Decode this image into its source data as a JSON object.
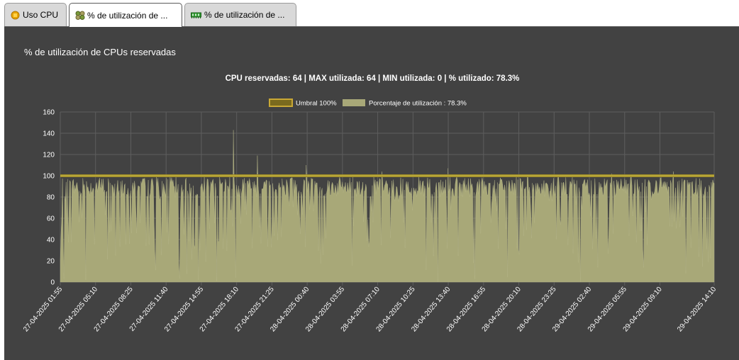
{
  "tabs": [
    {
      "label": "Uso CPU",
      "icon": "cpu-chip-icon"
    },
    {
      "label": "% de utilización de ...",
      "icon": "cpu-cluster-icon"
    },
    {
      "label": "% de utilización de ...",
      "icon": "memory-icon"
    }
  ],
  "panel": {
    "title": "% de utilización de CPUs reservadas"
  },
  "colors": {
    "panel_bg": "#424242",
    "threshold": "#9c8a2a",
    "area_fill": "#a8a878",
    "grid": "#5e5e5e"
  },
  "chart_data": {
    "type": "area",
    "subtitle": "CPU reservadas: 64 |  MAX utilizada: 64 |  MIN utilizada: 0 |  % utilizado: 78.3%",
    "legend": [
      "Umbral 100%",
      "Porcentaje de utilización : 78.3%"
    ],
    "legend_position": "top-center",
    "ylim": [
      0,
      160
    ],
    "yticks": [
      0,
      20,
      40,
      60,
      80,
      100,
      120,
      140,
      160
    ],
    "x_tick_labels": [
      "27-04-2025 01:55",
      "27-04-2025 05:10",
      "27-04-2025 08:25",
      "27-04-2025 11:40",
      "27-04-2025 14:55",
      "27-04-2025 18:10",
      "27-04-2025 21:25",
      "28-04-2025 00:40",
      "28-04-2025 03:55",
      "28-04-2025 07:10",
      "28-04-2025 10:25",
      "28-04-2025 13:40",
      "28-04-2025 16:55",
      "28-04-2025 20:10",
      "28-04-2025 23:25",
      "29-04-2025 02:40",
      "29-04-2025 05:55",
      "29-04-2025 09:10",
      "29-04-2025 14:10"
    ],
    "grid": true,
    "series": [
      {
        "name": "Umbral 100%",
        "value": 100
      },
      {
        "name": "Porcentaje de utilización : 78.3%",
        "avg": 78.3,
        "max": 143,
        "min": 0,
        "x_range": [
          "27-04-2025 01:55",
          "29-04-2025 14:10"
        ],
        "spikes": [
          {
            "x": "27-04-2025 17:53",
            "value": 143
          },
          {
            "x": "27-04-2025 20:06",
            "value": 119
          },
          {
            "x": "28-04-2025 00:35",
            "value": 110
          },
          {
            "x": "28-04-2025 13:38",
            "value": 107
          },
          {
            "x": "28-04-2025 07:34",
            "value": 104
          },
          {
            "x": "29-04-2025 04:43",
            "value": 102
          },
          {
            "x": "29-04-2025 10:24",
            "value": 104
          }
        ],
        "deep_drops": [
          {
            "x": "27-04-2025 02:14",
            "value": 3
          },
          {
            "x": "27-04-2025 14:38",
            "value": 2
          },
          {
            "x": "27-04-2025 16:20",
            "value": 1
          },
          {
            "x": "28-04-2025 12:40",
            "value": 0
          },
          {
            "x": "29-04-2025 01:52",
            "value": 0
          }
        ]
      }
    ]
  }
}
